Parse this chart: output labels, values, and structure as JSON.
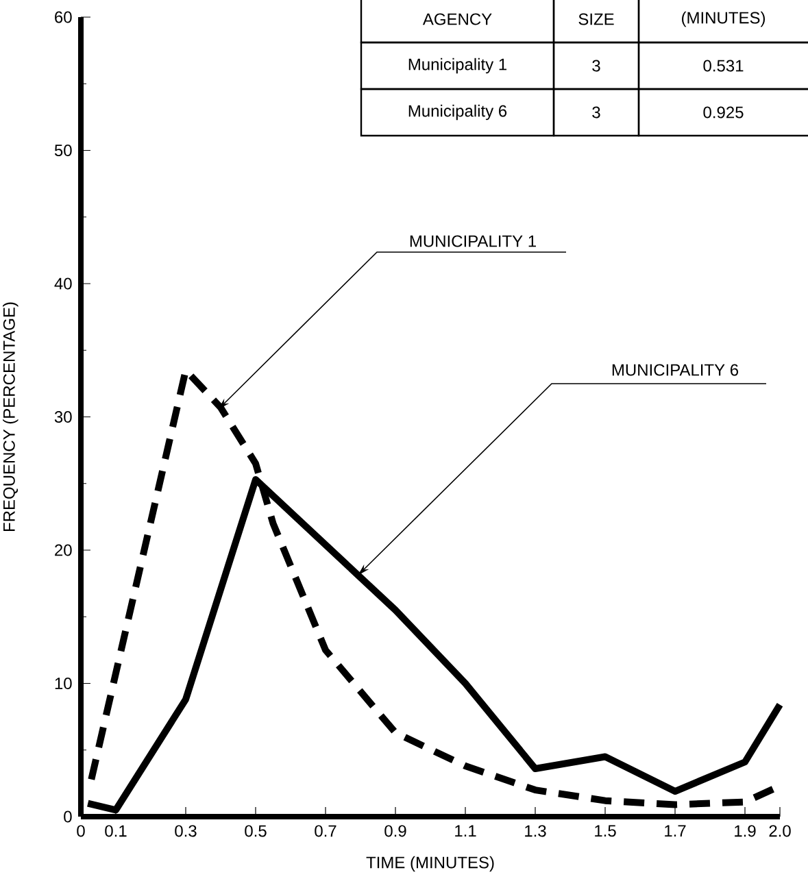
{
  "chart_data": {
    "type": "line",
    "xlabel": "TIME  (MINUTES)",
    "ylabel": "FREQUENCY    (PERCENTAGE)",
    "xlim": [
      0,
      2.0
    ],
    "ylim": [
      0,
      60
    ],
    "xticks": [
      0,
      0.1,
      0.3,
      0.5,
      0.7,
      0.9,
      1.1,
      1.3,
      1.5,
      1.7,
      1.9,
      {
        "value": 2.0,
        "label": "2.0"
      }
    ],
    "yticks": [
      0,
      10,
      20,
      30,
      40,
      50,
      60
    ],
    "series": [
      {
        "name": "MUNICIPALITY 1",
        "color": "#000000",
        "line_style": "dashed",
        "x": [
          0.03,
          0.3,
          0.4,
          0.5,
          0.55,
          0.7,
          0.9,
          1.1,
          1.3,
          1.5,
          1.7,
          1.9,
          2.0
        ],
        "values": [
          2.8,
          33.5,
          30.7,
          26.5,
          22,
          12.5,
          6.3,
          3.8,
          2,
          1.2,
          0.9,
          1.1,
          2.3
        ]
      },
      {
        "name": "MUNICIPALITY 6",
        "color": "#000000",
        "line_style": "solid",
        "x": [
          0.02,
          0.1,
          0.3,
          0.5,
          0.9,
          1.1,
          1.3,
          1.5,
          1.7,
          1.9,
          2.0
        ],
        "values": [
          1,
          0.5,
          8.8,
          25.3,
          15.5,
          10,
          3.6,
          4.5,
          1.9,
          4.1,
          8.4
        ]
      }
    ],
    "annotations": [
      "AGENCY",
      "SIZE",
      "(MINUTES)",
      "Municipality 1",
      "3",
      "0.531",
      "Municipality 6",
      "3",
      "0.925"
    ]
  }
}
